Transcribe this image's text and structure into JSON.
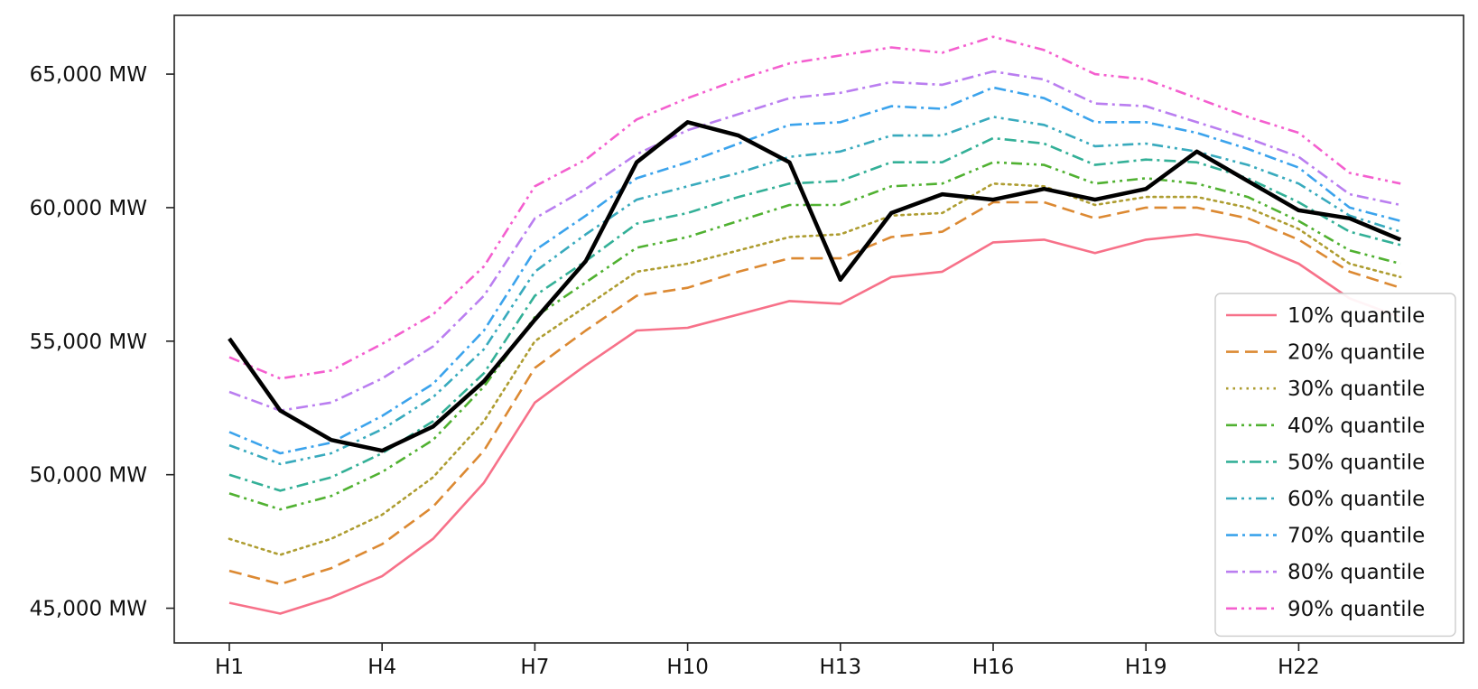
{
  "chart_data": {
    "type": "line",
    "title": "",
    "xlabel": "",
    "ylabel": "",
    "x": [
      "H1",
      "H2",
      "H3",
      "H4",
      "H5",
      "H6",
      "H7",
      "H8",
      "H9",
      "H10",
      "H11",
      "H12",
      "H13",
      "H14",
      "H15",
      "H16",
      "H17",
      "H18",
      "H19",
      "H20",
      "H21",
      "H22",
      "H23",
      "H24"
    ],
    "xticks": [
      "H1",
      "H4",
      "H7",
      "H10",
      "H13",
      "H16",
      "H19",
      "H22"
    ],
    "yticks": [
      "45,000 MW",
      "50,000 MW",
      "55,000 MW",
      "60,000 MW",
      "65,000 MW"
    ],
    "ytick_values": [
      45000,
      50000,
      55000,
      60000,
      65000
    ],
    "ylim": [
      43700,
      67200
    ],
    "grid": false,
    "legend_position": "lower-right",
    "series": [
      {
        "name": "10% quantile",
        "color": "#f77189",
        "dash": "solid",
        "values": [
          45200,
          44800,
          45400,
          46200,
          47600,
          49700,
          52700,
          54100,
          55400,
          55500,
          56000,
          56500,
          56400,
          57400,
          57600,
          58700,
          58800,
          58300,
          58800,
          59000,
          58700,
          57900,
          56600,
          55900
        ]
      },
      {
        "name": "20% quantile",
        "color": "#dc8932",
        "dash": "dashed",
        "values": [
          46400,
          45900,
          46500,
          47400,
          48800,
          50900,
          54000,
          55400,
          56700,
          57000,
          57600,
          58100,
          58100,
          58900,
          59100,
          60200,
          60200,
          59600,
          60000,
          60000,
          59600,
          58800,
          57600,
          57000
        ]
      },
      {
        "name": "30% quantile",
        "color": "#ae9d31",
        "dash": "dotted",
        "values": [
          47600,
          47000,
          47600,
          48500,
          49900,
          52000,
          55000,
          56300,
          57600,
          57900,
          58400,
          58900,
          59000,
          59700,
          59800,
          60900,
          60800,
          60100,
          60400,
          60400,
          60000,
          59200,
          57900,
          57400
        ]
      },
      {
        "name": "40% quantile",
        "color": "#50b131",
        "dash": "dashdotdot",
        "values": [
          49300,
          48700,
          49200,
          50100,
          51300,
          53300,
          55900,
          57200,
          58500,
          58900,
          59500,
          60100,
          60100,
          60800,
          60900,
          61700,
          61600,
          60900,
          61100,
          60900,
          60400,
          59500,
          58400,
          57900
        ]
      },
      {
        "name": "50% quantile",
        "color": "#33b097",
        "dash": "dashdot",
        "values": [
          50000,
          49400,
          49900,
          50800,
          52000,
          53800,
          56700,
          58000,
          59400,
          59800,
          60400,
          60900,
          61000,
          61700,
          61700,
          62600,
          62400,
          61600,
          61800,
          61700,
          61100,
          60200,
          59100,
          58600
        ]
      },
      {
        "name": "60% quantile",
        "color": "#38aabd",
        "dash": "dashdotdot",
        "values": [
          51100,
          50400,
          50800,
          51700,
          52900,
          54700,
          57600,
          59000,
          60300,
          60800,
          61300,
          61900,
          62100,
          62700,
          62700,
          63400,
          63100,
          62300,
          62400,
          62100,
          61600,
          60900,
          59700,
          59100
        ]
      },
      {
        "name": "70% quantile",
        "color": "#3ba3ec",
        "dash": "dashdot",
        "values": [
          51600,
          50800,
          51200,
          52200,
          53400,
          55400,
          58400,
          59700,
          61100,
          61700,
          62400,
          63100,
          63200,
          63800,
          63700,
          64500,
          64100,
          63200,
          63200,
          62800,
          62200,
          61500,
          60000,
          59500
        ]
      },
      {
        "name": "80% quantile",
        "color": "#ba7ef0",
        "dash": "dashdot",
        "values": [
          53100,
          52400,
          52700,
          53600,
          54800,
          56700,
          59600,
          60700,
          62000,
          62900,
          63500,
          64100,
          64300,
          64700,
          64600,
          65100,
          64800,
          63900,
          63800,
          63200,
          62600,
          61900,
          60500,
          60100
        ]
      },
      {
        "name": "90% quantile",
        "color": "#f45fcf",
        "dash": "dashdotdot",
        "values": [
          54400,
          53600,
          53900,
          54900,
          56000,
          57800,
          60800,
          61800,
          63300,
          64100,
          64800,
          65400,
          65700,
          66000,
          65800,
          66400,
          65900,
          65000,
          64800,
          64100,
          63400,
          62800,
          61300,
          60900
        ]
      },
      {
        "color": "#000000",
        "dash": "solid",
        "bold": true,
        "values": [
          55100,
          52400,
          51300,
          50900,
          51800,
          53500,
          55800,
          58000,
          61700,
          63200,
          62700,
          61700,
          57300,
          59800,
          60500,
          60300,
          60700,
          60300,
          60700,
          62100,
          61000,
          59900,
          59600,
          58800
        ]
      }
    ]
  }
}
